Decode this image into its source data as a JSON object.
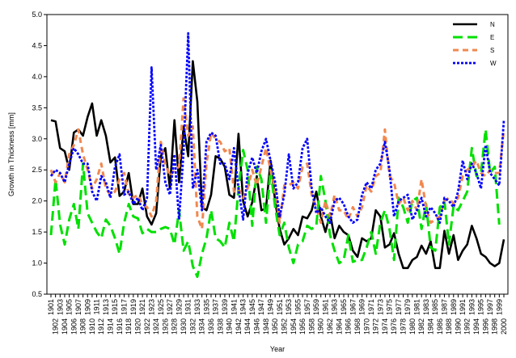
{
  "chart_data": {
    "type": "line",
    "xlabel": "Year",
    "ylabel": "Growth in Thickness [mm]",
    "ylim": [
      0.5,
      5.0
    ],
    "y_ticks": [
      "0.5",
      "1.0",
      "1.5",
      "2.0",
      "2.5",
      "3.0",
      "3.5",
      "4.0",
      "4.5",
      "5.0"
    ],
    "xlim": [
      1901,
      2000
    ],
    "x_tick_labels": [
      "1901",
      "1902",
      "1903",
      "1904",
      "1905",
      "1906",
      "1907",
      "1908",
      "1909",
      "1910",
      "1911",
      "1912",
      "1913",
      "1914",
      "1915",
      "1916",
      "1917",
      "1918",
      "1919",
      "1920",
      "1921",
      "1922",
      "1923",
      "1924",
      "1925",
      "1926",
      "1927",
      "1928",
      "1929",
      "1930",
      "1931",
      "1932",
      "1933",
      "1934",
      "1935",
      "1936",
      "1937",
      "1938",
      "1939",
      "1940",
      "1941",
      "1942",
      "1943",
      "1944",
      "1945",
      "1946",
      "1947",
      "1948",
      "1949",
      "1950",
      "1951",
      "1952",
      "1953",
      "1954",
      "1955",
      "1956",
      "1957",
      "1958",
      "1959",
      "1960",
      "1961",
      "1962",
      "1963",
      "1964",
      "1965",
      "1966",
      "1967",
      "1968",
      "1969",
      "1970",
      "1971",
      "1972",
      "1973",
      "1974",
      "1975",
      "1976",
      "1977",
      "1978",
      "1979",
      "1980",
      "1981",
      "1982",
      "1983",
      "1984",
      "1985",
      "1986",
      "1987",
      "1988",
      "1989",
      "1990",
      "1991",
      "1992",
      "1993",
      "1994",
      "1995",
      "1996",
      "1997",
      "1998",
      "1999",
      "2000"
    ],
    "grid": false,
    "legend_position": "top-right",
    "series": [
      {
        "name": "N",
        "color": "#000000",
        "dash": "solid",
        "x": [
          1901,
          1902,
          1903,
          1904,
          1905,
          1906,
          1907,
          1908,
          1909,
          1910,
          1911,
          1912,
          1913,
          1914,
          1915,
          1916,
          1917,
          1918,
          1919,
          1920,
          1921,
          1922,
          1923,
          1924,
          1925,
          1926,
          1927,
          1928,
          1929,
          1930,
          1931,
          1932,
          1933,
          1934,
          1935,
          1936,
          1937,
          1938,
          1939,
          1940,
          1941,
          1942,
          1943,
          1944,
          1945,
          1946,
          1947,
          1948,
          1949,
          1950,
          1951,
          1952,
          1953,
          1954,
          1955,
          1956,
          1957,
          1958,
          1959,
          1960,
          1961,
          1962,
          1963,
          1964,
          1965,
          1966,
          1967,
          1968,
          1969,
          1970,
          1971,
          1972,
          1973,
          1974,
          1975,
          1976,
          1977,
          1978,
          1979,
          1980,
          1981,
          1982,
          1983,
          1984,
          1985,
          1986,
          1987,
          1988,
          1989,
          1990,
          1991,
          1992,
          1993,
          1994,
          1995,
          1996,
          1997,
          1998,
          1999,
          2000
        ],
        "values": [
          3.3,
          3.28,
          2.85,
          2.8,
          2.5,
          3.1,
          3.15,
          3.05,
          3.35,
          3.57,
          3.05,
          3.3,
          3.05,
          2.62,
          2.7,
          2.08,
          2.15,
          2.45,
          1.95,
          1.95,
          2.2,
          1.75,
          1.62,
          1.8,
          2.72,
          2.85,
          2.2,
          3.3,
          2.3,
          3.2,
          2.72,
          4.25,
          3.6,
          1.9,
          1.85,
          2.1,
          2.72,
          2.68,
          2.55,
          2.1,
          2.05,
          3.08,
          2.0,
          1.75,
          1.98,
          2.4,
          1.85,
          1.88,
          2.65,
          2.0,
          1.55,
          1.3,
          1.4,
          1.55,
          1.45,
          1.75,
          1.72,
          1.85,
          2.15,
          1.75,
          1.5,
          1.8,
          1.4,
          1.6,
          1.5,
          1.45,
          1.2,
          1.1,
          1.4,
          1.35,
          1.4,
          1.85,
          1.75,
          1.25,
          1.3,
          1.48,
          1.15,
          0.92,
          0.92,
          1.05,
          1.1,
          1.28,
          1.15,
          1.35,
          0.92,
          0.92,
          1.52,
          1.15,
          1.45,
          1.05,
          1.2,
          1.3,
          1.6,
          1.4,
          1.15,
          1.1,
          1.0,
          0.95,
          1.0,
          1.38
        ]
      },
      {
        "name": "E",
        "color": "#00e000",
        "dash": "long-dash",
        "x": [
          1901,
          1902,
          1903,
          1904,
          1905,
          1906,
          1907,
          1908,
          1909,
          1910,
          1911,
          1912,
          1913,
          1914,
          1915,
          1916,
          1917,
          1918,
          1919,
          1920,
          1921,
          1922,
          1923,
          1924,
          1925,
          1926,
          1927,
          1928,
          1929,
          1930,
          1931,
          1932,
          1933,
          1934,
          1935,
          1936,
          1937,
          1938,
          1939,
          1940,
          1941,
          1942,
          1943,
          1944,
          1945,
          1946,
          1947,
          1948,
          1949,
          1950,
          1951,
          1952,
          1953,
          1954,
          1955,
          1956,
          1957,
          1958,
          1959,
          1960,
          1961,
          1962,
          1963,
          1964,
          1965,
          1966,
          1967,
          1968,
          1969,
          1970,
          1971,
          1972,
          1973,
          1974,
          1975,
          1976,
          1977,
          1978,
          1979,
          1980,
          1981,
          1982,
          1983,
          1984,
          1985,
          1986,
          1987,
          1988,
          1989,
          1990,
          1991,
          1992,
          1993,
          1994,
          1995,
          1996,
          1997,
          1998,
          1999,
          2000
        ],
        "values": [
          1.45,
          2.35,
          1.62,
          1.3,
          1.7,
          1.95,
          1.55,
          2.6,
          1.8,
          1.65,
          1.5,
          1.4,
          1.7,
          1.6,
          1.4,
          1.15,
          1.65,
          1.95,
          1.75,
          1.72,
          1.48,
          1.55,
          1.5,
          1.5,
          1.55,
          1.58,
          1.55,
          1.3,
          1.85,
          1.2,
          1.35,
          0.95,
          0.78,
          1.15,
          1.4,
          1.85,
          1.4,
          1.35,
          1.25,
          1.65,
          1.35,
          2.2,
          2.82,
          2.5,
          1.6,
          2.55,
          2.35,
          1.65,
          2.5,
          1.9,
          1.45,
          1.65,
          1.25,
          1.0,
          1.3,
          1.35,
          1.6,
          1.55,
          1.6,
          2.4,
          2.0,
          1.45,
          1.2,
          1.0,
          1.05,
          1.45,
          1.02,
          1.05,
          1.05,
          1.25,
          1.5,
          1.15,
          1.65,
          1.85,
          1.55,
          1.05,
          2.05,
          1.9,
          1.65,
          2.0,
          2.05,
          1.55,
          1.95,
          1.25,
          1.2,
          1.9,
          2.0,
          1.3,
          1.92,
          1.85,
          2.0,
          2.15,
          2.85,
          2.4,
          2.45,
          3.15,
          2.45,
          2.55,
          1.62,
          null
        ]
      },
      {
        "name": "S",
        "color": "#f08850",
        "dash": "dashed",
        "x": [
          1901,
          1902,
          1903,
          1904,
          1905,
          1906,
          1907,
          1908,
          1909,
          1910,
          1911,
          1912,
          1913,
          1914,
          1915,
          1916,
          1917,
          1918,
          1919,
          1920,
          1921,
          1922,
          1923,
          1924,
          1925,
          1926,
          1927,
          1928,
          1929,
          1930,
          1931,
          1932,
          1933,
          1934,
          1935,
          1936,
          1937,
          1938,
          1939,
          1940,
          1941,
          1942,
          1943,
          1944,
          1945,
          1946,
          1947,
          1948,
          1949,
          1950,
          1951,
          1952,
          1953,
          1954,
          1955,
          1956,
          1957,
          1958,
          1959,
          1960,
          1961,
          1962,
          1963,
          1964,
          1965,
          1966,
          1967,
          1968,
          1969,
          1970,
          1971,
          1972,
          1973,
          1974,
          1975,
          1976,
          1977,
          1978,
          1979,
          1980,
          1981,
          1982,
          1983,
          1984,
          1985,
          1986,
          1987,
          1988,
          1989,
          1990,
          1991,
          1992,
          1993,
          1994,
          1995,
          1996,
          1997,
          1998,
          1999,
          2000
        ],
        "values": [
          2.5,
          2.3,
          2.45,
          2.3,
          2.75,
          2.9,
          3.15,
          2.75,
          2.5,
          2.2,
          2.35,
          2.6,
          2.2,
          2.1,
          2.15,
          2.35,
          2.45,
          2.1,
          2.05,
          2.1,
          1.95,
          1.9,
          1.75,
          2.0,
          2.95,
          2.6,
          2.4,
          2.5,
          2.55,
          3.65,
          3.05,
          3.2,
          1.75,
          1.55,
          2.6,
          3.1,
          3.0,
          2.95,
          2.8,
          2.85,
          2.15,
          2.2,
          2.05,
          2.2,
          2.5,
          2.25,
          2.55,
          2.85,
          2.5,
          2.2,
          1.65,
          2.25,
          2.25,
          2.3,
          2.2,
          2.55,
          2.6,
          2.1,
          1.9,
          1.65,
          2.0,
          1.75,
          2.1,
          1.85,
          1.85,
          1.7,
          1.9,
          1.75,
          1.9,
          2.25,
          2.15,
          2.4,
          2.45,
          3.15,
          2.4,
          2.3,
          1.95,
          2.05,
          1.85,
          2.0,
          1.85,
          2.35,
          1.9,
          1.65,
          1.7,
          1.75,
          2.0,
          2.05,
          1.95,
          2.05,
          2.4,
          2.5,
          2.55,
          2.65,
          2.45,
          2.4,
          2.5,
          2.45,
          2.45,
          3.15
        ]
      },
      {
        "name": "W",
        "color": "#0000ff",
        "dash": "dotted",
        "x": [
          1901,
          1902,
          1903,
          1904,
          1905,
          1906,
          1907,
          1908,
          1909,
          1910,
          1911,
          1912,
          1913,
          1914,
          1915,
          1916,
          1917,
          1918,
          1919,
          1920,
          1921,
          1922,
          1923,
          1924,
          1925,
          1926,
          1927,
          1928,
          1929,
          1930,
          1931,
          1932,
          1933,
          1934,
          1935,
          1936,
          1937,
          1938,
          1939,
          1940,
          1941,
          1942,
          1943,
          1944,
          1945,
          1946,
          1947,
          1948,
          1949,
          1950,
          1951,
          1952,
          1953,
          1954,
          1955,
          1956,
          1957,
          1958,
          1959,
          1960,
          1961,
          1962,
          1963,
          1964,
          1965,
          1966,
          1967,
          1968,
          1969,
          1970,
          1971,
          1972,
          1973,
          1974,
          1975,
          1976,
          1977,
          1978,
          1979,
          1980,
          1981,
          1982,
          1983,
          1984,
          1985,
          1986,
          1987,
          1988,
          1989,
          1990,
          1991,
          1992,
          1993,
          1994,
          1995,
          1996,
          1997,
          1998,
          1999,
          2000
        ],
        "values": [
          2.4,
          2.5,
          2.45,
          2.3,
          2.6,
          2.85,
          2.75,
          2.6,
          2.6,
          2.15,
          2.0,
          2.4,
          2.3,
          2.05,
          2.55,
          2.75,
          2.1,
          2.15,
          1.95,
          2.05,
          1.85,
          2.05,
          4.15,
          2.5,
          2.9,
          2.3,
          2.1,
          2.75,
          1.7,
          2.8,
          4.7,
          2.2,
          2.5,
          1.85,
          2.95,
          3.1,
          3.05,
          2.6,
          2.6,
          2.35,
          2.85,
          2.2,
          1.7,
          2.45,
          2.7,
          2.45,
          2.8,
          3.0,
          2.65,
          2.3,
          1.75,
          2.1,
          2.75,
          2.2,
          2.3,
          2.85,
          3.0,
          2.2,
          1.8,
          1.9,
          1.75,
          1.65,
          2.0,
          2.05,
          1.95,
          1.75,
          1.65,
          1.7,
          2.1,
          2.3,
          2.2,
          2.5,
          2.6,
          2.95,
          2.5,
          1.75,
          2.0,
          2.05,
          2.1,
          1.7,
          1.85,
          2.05,
          1.75,
          1.9,
          1.8,
          1.65,
          2.05,
          2.0,
          1.9,
          2.15,
          2.65,
          2.35,
          2.6,
          2.45,
          2.2,
          2.9,
          2.45,
          2.35,
          2.25,
          3.3
        ]
      }
    ]
  }
}
